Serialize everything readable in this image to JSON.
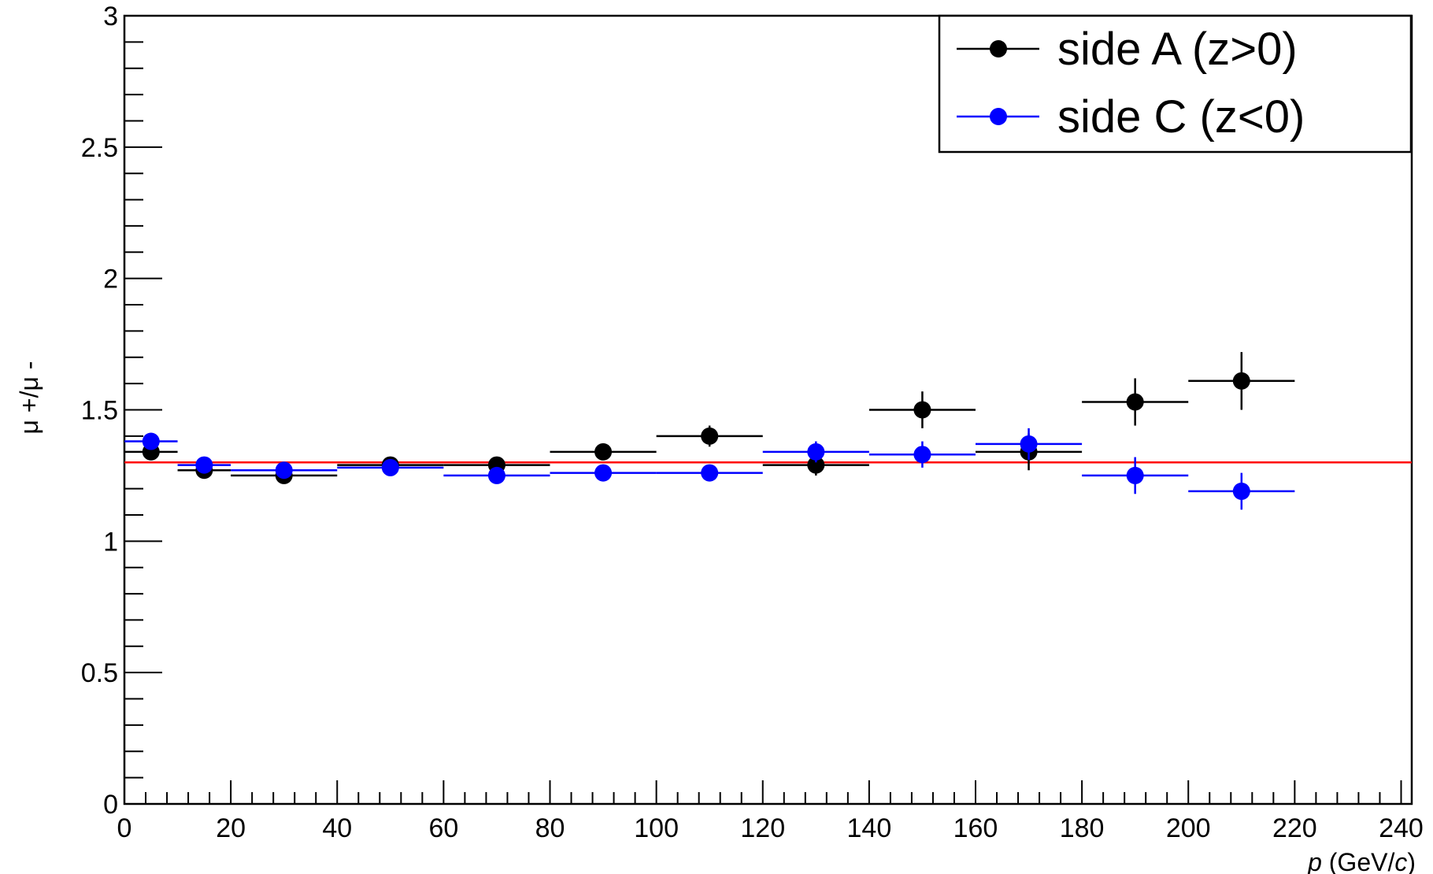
{
  "chart_data": {
    "type": "scatter",
    "title": "",
    "xlabel_italic": "p",
    "xlabel_rest": " (GeV/",
    "xlabel_italic2": "c",
    "xlabel_close": ")",
    "ylabel": "μ +/μ -",
    "xlim": [
      0,
      242
    ],
    "ylim": [
      0,
      3
    ],
    "x_ticks": [
      "0",
      "20",
      "40",
      "60",
      "80",
      "100",
      "120",
      "140",
      "160",
      "180",
      "200",
      "220",
      "240"
    ],
    "y_ticks": [
      "0",
      "0.5",
      "1",
      "1.5",
      "2",
      "2.5",
      "3"
    ],
    "grid": false,
    "legend_position": "top-right",
    "reference_line": {
      "y": 1.3,
      "color": "#ff0000"
    },
    "series": [
      {
        "name": "side A (z>0)",
        "color": "#000000",
        "points": [
          {
            "x": 5,
            "xlo": 0,
            "xhi": 10,
            "y": 1.34,
            "yerr": 0.02
          },
          {
            "x": 15,
            "xlo": 10,
            "xhi": 20,
            "y": 1.27,
            "yerr": 0.02
          },
          {
            "x": 30,
            "xlo": 20,
            "xhi": 40,
            "y": 1.25,
            "yerr": 0.02
          },
          {
            "x": 50,
            "xlo": 40,
            "xhi": 60,
            "y": 1.29,
            "yerr": 0.02
          },
          {
            "x": 70,
            "xlo": 60,
            "xhi": 80,
            "y": 1.29,
            "yerr": 0.02
          },
          {
            "x": 90,
            "xlo": 80,
            "xhi": 100,
            "y": 1.34,
            "yerr": 0.02
          },
          {
            "x": 110,
            "xlo": 100,
            "xhi": 120,
            "y": 1.4,
            "yerr": 0.04
          },
          {
            "x": 130,
            "xlo": 120,
            "xhi": 140,
            "y": 1.29,
            "yerr": 0.04
          },
          {
            "x": 150,
            "xlo": 140,
            "xhi": 160,
            "y": 1.5,
            "yerr": 0.07
          },
          {
            "x": 170,
            "xlo": 160,
            "xhi": 180,
            "y": 1.34,
            "yerr": 0.07
          },
          {
            "x": 190,
            "xlo": 180,
            "xhi": 200,
            "y": 1.53,
            "yerr": 0.09
          },
          {
            "x": 210,
            "xlo": 200,
            "xhi": 220,
            "y": 1.61,
            "yerr": 0.11
          }
        ]
      },
      {
        "name": "side C (z<0)",
        "color": "#0000ff",
        "points": [
          {
            "x": 5,
            "xlo": 0,
            "xhi": 10,
            "y": 1.38,
            "yerr": 0.02
          },
          {
            "x": 15,
            "xlo": 10,
            "xhi": 20,
            "y": 1.29,
            "yerr": 0.02
          },
          {
            "x": 30,
            "xlo": 20,
            "xhi": 40,
            "y": 1.27,
            "yerr": 0.02
          },
          {
            "x": 50,
            "xlo": 40,
            "xhi": 60,
            "y": 1.28,
            "yerr": 0.02
          },
          {
            "x": 70,
            "xlo": 60,
            "xhi": 80,
            "y": 1.25,
            "yerr": 0.02
          },
          {
            "x": 90,
            "xlo": 80,
            "xhi": 100,
            "y": 1.26,
            "yerr": 0.02
          },
          {
            "x": 110,
            "xlo": 100,
            "xhi": 120,
            "y": 1.26,
            "yerr": 0.03
          },
          {
            "x": 130,
            "xlo": 120,
            "xhi": 140,
            "y": 1.34,
            "yerr": 0.04
          },
          {
            "x": 150,
            "xlo": 140,
            "xhi": 160,
            "y": 1.33,
            "yerr": 0.05
          },
          {
            "x": 170,
            "xlo": 160,
            "xhi": 180,
            "y": 1.37,
            "yerr": 0.06
          },
          {
            "x": 190,
            "xlo": 180,
            "xhi": 200,
            "y": 1.25,
            "yerr": 0.07
          },
          {
            "x": 210,
            "xlo": 200,
            "xhi": 220,
            "y": 1.19,
            "yerr": 0.07
          }
        ]
      }
    ]
  }
}
